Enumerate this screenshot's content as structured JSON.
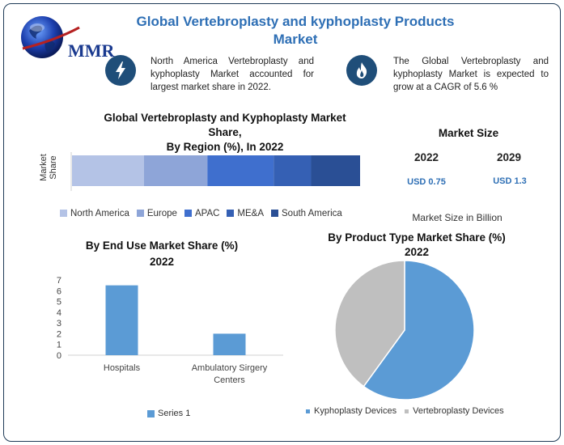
{
  "header": {
    "logo_text": "MMR",
    "title": "Global Vertebroplasty and kyphoplasty Products Market"
  },
  "callouts": [
    {
      "icon": "lightning-icon",
      "text": "North America Vertebroplasty and kyphoplasty Market accounted for largest market share in 2022."
    },
    {
      "icon": "flame-icon",
      "text": "The Global Vertebroplasty and kyphoplasty Market is expected to grow at a CAGR of 5.6 %"
    }
  ],
  "market_size": {
    "title": "Market Size",
    "years": [
      "2022",
      "2029"
    ],
    "values": [
      "USD 0.75",
      "USD 1.3"
    ],
    "caption": "Market Size in Billion"
  },
  "colors": {
    "north_america": "#b4c3e6",
    "europe": "#8ea5d8",
    "apac": "#3f6fce",
    "mea": "#3560b4",
    "south_america": "#2a4f95",
    "bar": "#5b9bd5",
    "pie_kypho": "#5b9bd5",
    "pie_vertebro": "#bfbfbf",
    "title_blue": "#2e6fb5",
    "icon_navy": "#1f4e79"
  },
  "chart_data": [
    {
      "type": "bar",
      "orientation": "horizontal-stacked",
      "title": "Global Vertebroplasty and Kyphoplasty Market Share, By Region (%), In 2022",
      "title_lines": [
        "Global Vertebroplasty and Kyphoplasty Market",
        "Share,",
        "By Region (%), In 2022"
      ],
      "ylabel": "Market Share",
      "series": [
        {
          "name": "North America",
          "values": [
            25
          ]
        },
        {
          "name": "Europe",
          "values": [
            22
          ]
        },
        {
          "name": "APAC",
          "values": [
            23
          ]
        },
        {
          "name": "ME&A",
          "values": [
            13
          ]
        },
        {
          "name": "South America",
          "values": [
            17
          ]
        }
      ],
      "legend": "bottom"
    },
    {
      "type": "bar",
      "title": "By End Use Market Share (%) 2022",
      "title_lines": [
        "By End Use Market Share (%)",
        "2022"
      ],
      "categories": [
        "Hospitals",
        "Ambulatory Sirgery Centers"
      ],
      "category_lines": [
        [
          "Hospitals"
        ],
        [
          "Ambulatory Sirgery",
          "Centers"
        ]
      ],
      "series": [
        {
          "name": "Series 1",
          "values": [
            6.5,
            2
          ]
        }
      ],
      "ylim": [
        0,
        7
      ],
      "yticks": [
        0,
        1,
        2,
        3,
        4,
        5,
        6,
        7
      ],
      "legend": "bottom"
    },
    {
      "type": "pie",
      "title": "By Product Type Market Share (%) 2022",
      "title_lines": [
        "By Product Type Market Share (%)",
        "2022"
      ],
      "labels": [
        "Kyphoplasty Devices",
        "Vertebroplasty Devices"
      ],
      "values": [
        60,
        40
      ],
      "legend": "bottom"
    }
  ]
}
